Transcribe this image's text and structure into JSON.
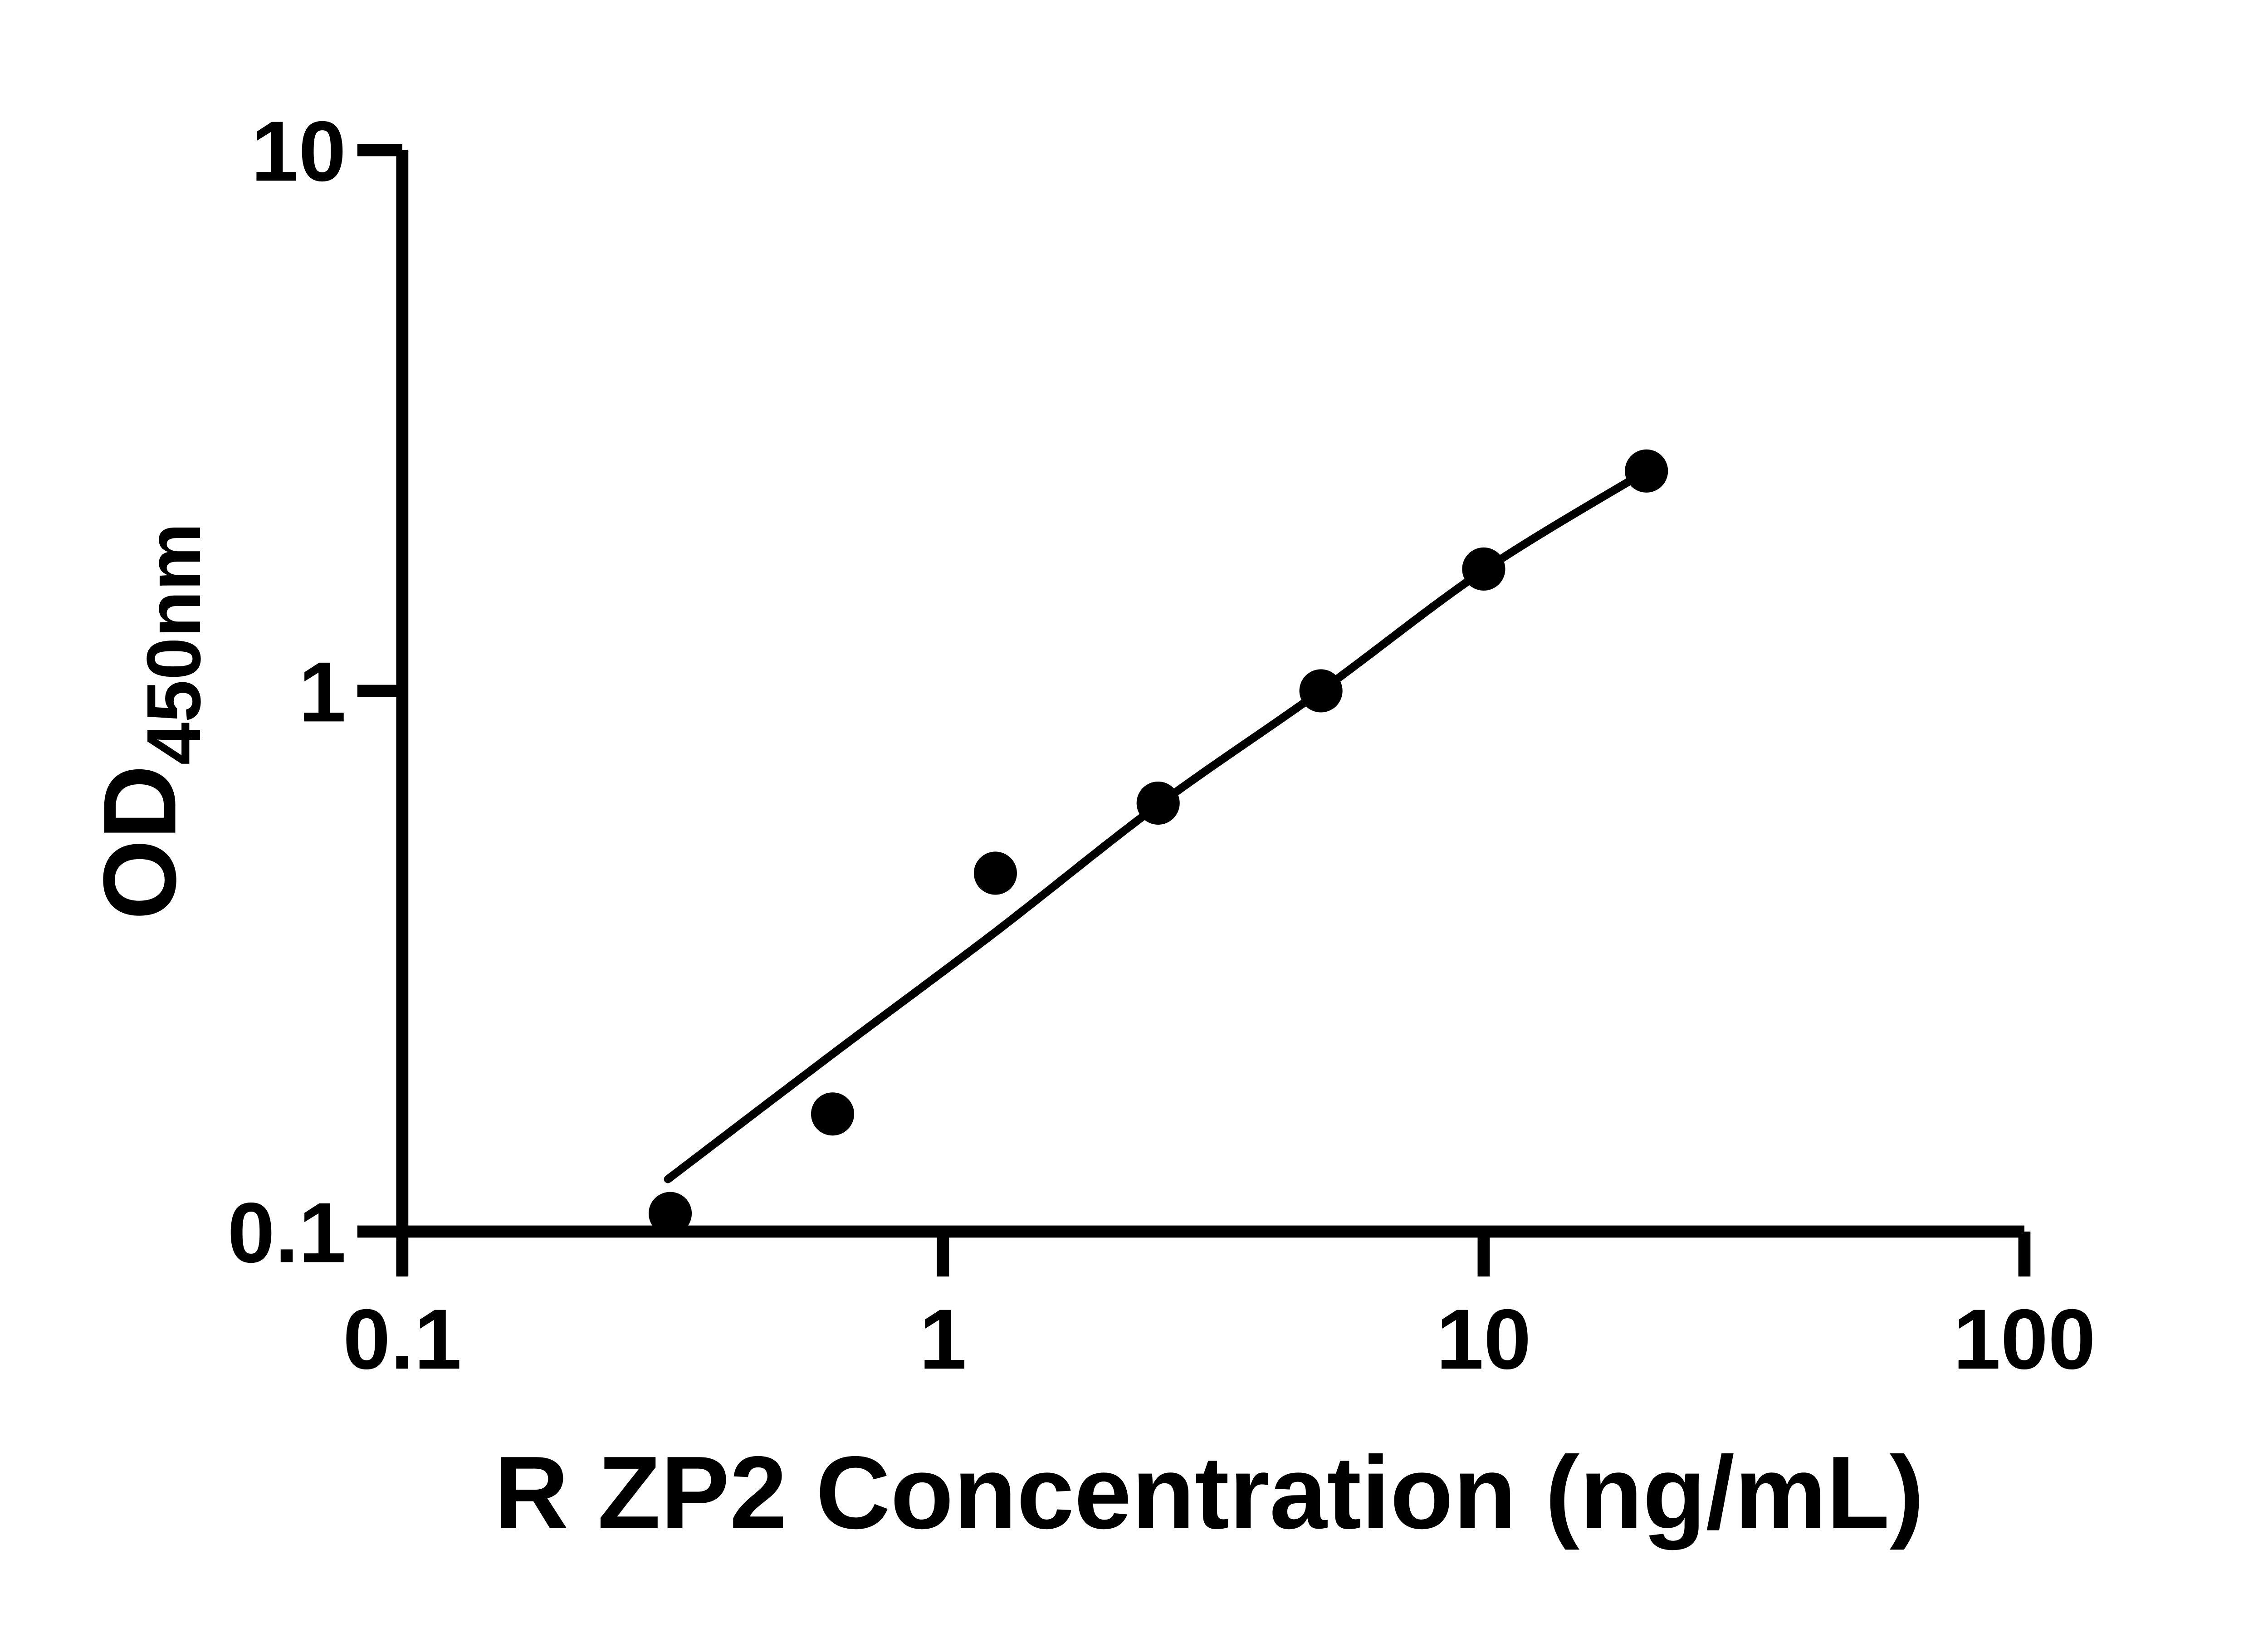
{
  "figure": {
    "background_color": "#ffffff",
    "ink_color": "#000000"
  },
  "chart_data": {
    "type": "scatter",
    "title": "",
    "xlabel": "R ZP2 Concentration (ng/mL)",
    "ylabel": "OD",
    "ylabel_subscript": "450nm",
    "x_scale": "log10",
    "y_scale": "log10",
    "xlim": [
      0.1,
      100
    ],
    "ylim": [
      0.1,
      10
    ],
    "x_ticks": [
      0.1,
      1,
      10,
      100
    ],
    "x_tick_labels": [
      "0.1",
      "1",
      "10",
      "100"
    ],
    "y_ticks": [
      10,
      1,
      0.1
    ],
    "y_tick_labels": [
      "10",
      "1",
      "0.1"
    ],
    "grid": false,
    "legend": "none",
    "series": [
      {
        "name": "standard curve data points",
        "marker": "filled-circle",
        "color": "#000000",
        "x": [
          0.313,
          0.625,
          1.25,
          2.5,
          5,
          10,
          20
        ],
        "y": [
          0.108,
          0.165,
          0.46,
          0.62,
          1.0,
          1.68,
          2.55
        ]
      }
    ],
    "fit_curve": {
      "name": "fitted standard curve line",
      "color": "#000000",
      "points": [
        {
          "x": 0.31,
          "y": 0.125
        },
        {
          "x": 0.625,
          "y": 0.213
        },
        {
          "x": 1.25,
          "y": 0.358
        },
        {
          "x": 2.5,
          "y": 0.615
        },
        {
          "x": 5,
          "y": 1.0
        },
        {
          "x": 10,
          "y": 1.67
        },
        {
          "x": 20,
          "y": 2.55
        }
      ]
    }
  }
}
